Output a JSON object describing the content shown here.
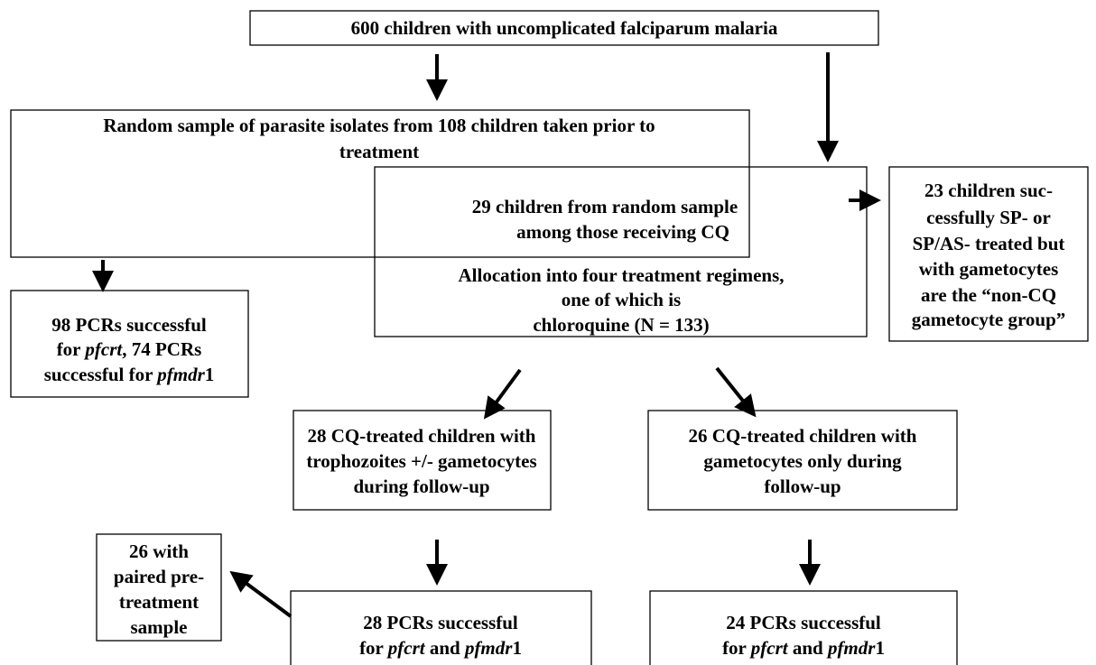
{
  "nodes": [
    {
      "lines": [
        "600 children with uncomplicated falciparum malaria"
      ]
    },
    {
      "lines": [
        "Random sample of parasite isolates from 108 children taken prior to",
        "treatment"
      ]
    },
    {
      "lines": [
        "29 children from random sample",
        "among those receiving CQ",
        "Allocation into four treatment regimens,",
        "one of which is",
        "chloroquine (N = 133)"
      ]
    },
    {
      "lines": [
        "23 children  suc-",
        "cessfully SP- or",
        "SP/AS- treated  but",
        "with gametocytes",
        "are the “non-CQ",
        "gametocyte group”"
      ]
    },
    {
      "lines": [
        "98 PCRs successful",
        [
          {
            "text": "for ",
            "italic": false
          },
          {
            "text": "pfcrt",
            "italic": true
          },
          {
            "text": ", 74 PCRs",
            "italic": false
          }
        ],
        [
          {
            "text": "successful for ",
            "italic": false
          },
          {
            "text": "pfmdr",
            "italic": true
          },
          {
            "text": "1",
            "italic": false
          }
        ]
      ]
    },
    {
      "lines": [
        "28 CQ-treated children with",
        "trophozoites +/- gametocytes",
        "during follow-up"
      ]
    },
    {
      "lines": [
        "26 CQ-treated children with",
        "gametocytes only during",
        "follow-up"
      ]
    },
    {
      "lines": [
        "26 with",
        "paired pre-",
        "treatment",
        "sample"
      ]
    },
    {
      "lines": [
        "28 PCRs successful",
        [
          {
            "text": "for ",
            "italic": false
          },
          {
            "text": "pfcrt",
            "italic": true
          },
          {
            "text": " and ",
            "italic": false
          },
          {
            "text": "pfmdr",
            "italic": true
          },
          {
            "text": "1",
            "italic": false
          }
        ]
      ]
    },
    {
      "lines": [
        "24 PCRs successful",
        [
          {
            "text": "for ",
            "italic": false
          },
          {
            "text": "pfcrt",
            "italic": true
          },
          {
            "text": " and ",
            "italic": false
          },
          {
            "text": "pfmdr",
            "italic": true
          },
          {
            "text": "1",
            "italic": false
          }
        ]
      ]
    }
  ]
}
